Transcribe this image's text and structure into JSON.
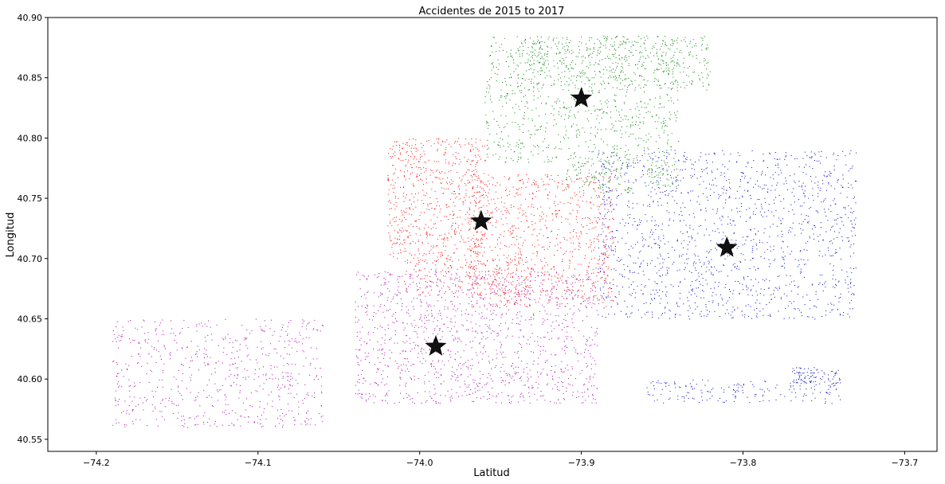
{
  "chart_data": {
    "type": "scatter",
    "title": "Accidentes de 2015 to 2017",
    "xlabel": "Latitud",
    "ylabel": "Longitud",
    "xlim": [
      -74.23,
      -73.68
    ],
    "ylim": [
      40.54,
      40.9
    ],
    "x_ticks": [
      -74.2,
      -74.1,
      -74.0,
      -73.9,
      -73.8,
      -73.7
    ],
    "x_tick_labels": [
      "−74.2",
      "−74.1",
      "−74.0",
      "−73.9",
      "−73.8",
      "−73.7"
    ],
    "y_ticks": [
      40.55,
      40.6,
      40.65,
      40.7,
      40.75,
      40.8,
      40.85,
      40.9
    ],
    "y_tick_labels": [
      "40.55",
      "40.60",
      "40.65",
      "40.70",
      "40.75",
      "40.80",
      "40.85",
      "40.90"
    ],
    "grid": false,
    "series": [
      {
        "color": "#008000",
        "regions": [
          {
            "bounds": [
              -73.96,
              -73.84,
              40.78,
              40.885
            ],
            "count": 900
          },
          {
            "bounds": [
              -73.94,
              -73.82,
              40.84,
              40.885
            ],
            "count": 400
          },
          {
            "bounds": [
              -73.91,
              -73.87,
              40.755,
              40.78
            ],
            "count": 120
          },
          {
            "bounds": [
              -73.86,
              -73.84,
              40.76,
              40.78
            ],
            "count": 60
          }
        ]
      },
      {
        "color": "#ff0000",
        "regions": [
          {
            "bounds": [
              -74.02,
              -73.96,
              40.7,
              40.8
            ],
            "count": 650
          },
          {
            "bounds": [
              -73.97,
              -73.88,
              40.66,
              40.77
            ],
            "count": 900
          },
          {
            "bounds": [
              -74.01,
              -73.93,
              40.67,
              40.7
            ],
            "count": 200
          }
        ]
      },
      {
        "color": "#0000cc",
        "regions": [
          {
            "bounds": [
              -73.89,
              -73.73,
              40.65,
              40.79
            ],
            "count": 1500
          },
          {
            "bounds": [
              -73.86,
              -73.74,
              40.58,
              40.6
            ],
            "count": 180
          },
          {
            "bounds": [
              -73.77,
              -73.74,
              40.595,
              40.61
            ],
            "count": 90
          }
        ]
      },
      {
        "color": "#aa00aa",
        "regions": [
          {
            "bounds": [
              -74.04,
              -73.89,
              40.58,
              40.69
            ],
            "count": 1300
          },
          {
            "bounds": [
              -74.19,
              -74.06,
              40.56,
              40.65
            ],
            "count": 650
          }
        ]
      }
    ],
    "centroids": [
      {
        "x": -73.9,
        "y": 40.833,
        "marker": "star"
      },
      {
        "x": -73.962,
        "y": 40.731,
        "marker": "star"
      },
      {
        "x": -73.81,
        "y": 40.709,
        "marker": "star"
      },
      {
        "x": -73.99,
        "y": 40.627,
        "marker": "star"
      }
    ]
  }
}
